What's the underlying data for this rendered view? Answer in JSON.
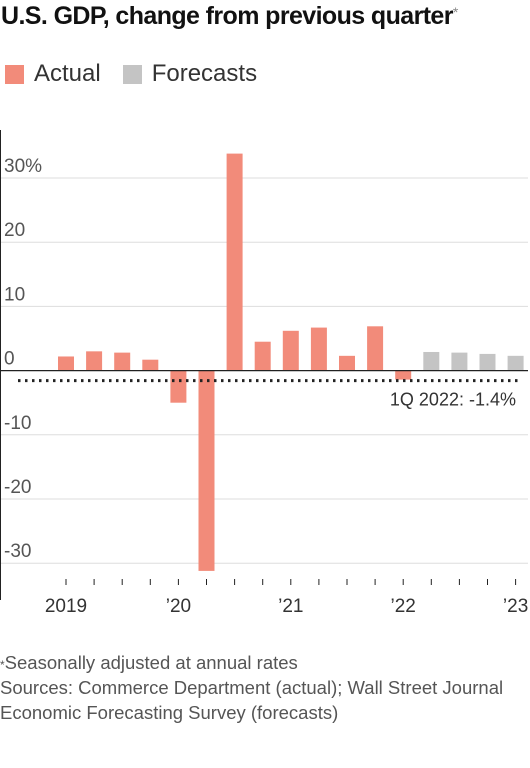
{
  "title": "U.S. GDP, change from previous quarter",
  "title_mark": "*",
  "legend": [
    {
      "label": "Actual",
      "color": "#f28b7a"
    },
    {
      "label": "Forecasts",
      "color": "#c4c4c4"
    }
  ],
  "chart_data": {
    "type": "bar",
    "title": "U.S. GDP, change from previous quarter",
    "xlabel": "",
    "ylabel": "",
    "ylim": [
      -33,
      36
    ],
    "yticks": [
      {
        "value": 30,
        "label": "30%"
      },
      {
        "value": 20,
        "label": "20"
      },
      {
        "value": 10,
        "label": "10"
      },
      {
        "value": 0,
        "label": "0"
      },
      {
        "value": -10,
        "label": "-10"
      },
      {
        "value": -20,
        "label": "-20"
      },
      {
        "value": -30,
        "label": "-30"
      }
    ],
    "grid": true,
    "legend_position": "top-left",
    "categories": [
      "1Q 2019",
      "2Q 2019",
      "3Q 2019",
      "4Q 2019",
      "1Q 2020",
      "2Q 2020",
      "3Q 2020",
      "4Q 2020",
      "1Q 2021",
      "2Q 2021",
      "3Q 2021",
      "4Q 2021",
      "1Q 2022",
      "2Q 2022",
      "3Q 2022",
      "4Q 2022",
      "1Q 2023"
    ],
    "series": [
      {
        "name": "Actual",
        "color": "#f28b7a",
        "values": [
          2.2,
          3.0,
          2.8,
          1.7,
          -5.0,
          -31.2,
          33.8,
          4.5,
          6.2,
          6.7,
          2.3,
          6.9,
          -1.4,
          null,
          null,
          null,
          null
        ]
      },
      {
        "name": "Forecasts",
        "color": "#c4c4c4",
        "values": [
          null,
          null,
          null,
          null,
          null,
          null,
          null,
          null,
          null,
          null,
          null,
          null,
          null,
          2.9,
          2.8,
          2.6,
          2.3
        ]
      }
    ],
    "xtick_labels": [
      {
        "category": "1Q 2019",
        "label": "2019"
      },
      {
        "category": "1Q 2020",
        "label": "’20"
      },
      {
        "category": "1Q 2021",
        "label": "’21"
      },
      {
        "category": "1Q 2022",
        "label": "’22"
      },
      {
        "category": "1Q 2023",
        "label": "’23"
      }
    ],
    "reference_line": {
      "value": -1.4,
      "style": "dotted",
      "label": "1Q 2022: -1.4%"
    }
  },
  "footnote": {
    "mark": "*",
    "note": "Seasonally adjusted at annual rates",
    "sources": "Sources: Commerce Department (actual); Wall Street Journal Economic Forecasting Survey (forecasts)"
  }
}
